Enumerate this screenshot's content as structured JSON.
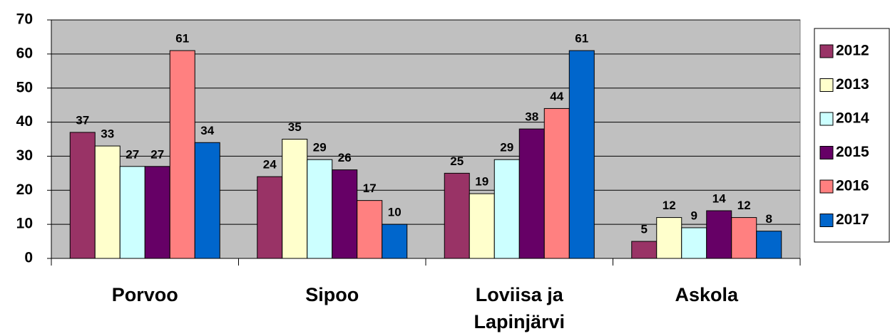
{
  "chart_data": {
    "type": "bar",
    "categories": [
      "Porvoo",
      "Sipoo",
      "Loviisa ja Lapinjärvi",
      "Askola"
    ],
    "series": [
      {
        "name": "2012",
        "color": "#993366",
        "values": [
          37,
          24,
          25,
          5
        ]
      },
      {
        "name": "2013",
        "color": "#ffffcc",
        "values": [
          33,
          35,
          19,
          12
        ]
      },
      {
        "name": "2014",
        "color": "#ccffff",
        "values": [
          27,
          29,
          29,
          9
        ]
      },
      {
        "name": "2015",
        "color": "#660066",
        "values": [
          27,
          26,
          38,
          14
        ]
      },
      {
        "name": "2016",
        "color": "#ff8080",
        "values": [
          61,
          17,
          44,
          12
        ]
      },
      {
        "name": "2017",
        "color": "#0066cc",
        "values": [
          34,
          10,
          61,
          8
        ]
      }
    ],
    "ylim": [
      0,
      70
    ],
    "yticks": [
      0,
      10,
      20,
      30,
      40,
      50,
      60,
      70
    ],
    "grid": true,
    "legend": "right"
  }
}
